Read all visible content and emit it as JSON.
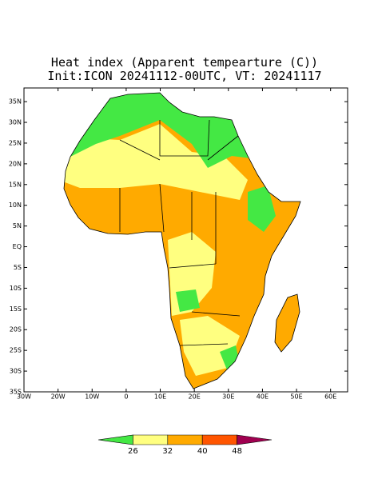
{
  "map": {
    "title": "Heat index (Apparent tempearture (C))",
    "subtitle": "Init:ICON 20241112-00UTC, VT: 20241117",
    "lat_ticks": [
      {
        "value": 35,
        "label": "35N"
      },
      {
        "value": 30,
        "label": "30N"
      },
      {
        "value": 25,
        "label": "25N"
      },
      {
        "value": 20,
        "label": "20N"
      },
      {
        "value": 15,
        "label": "15N"
      },
      {
        "value": 10,
        "label": "10N"
      },
      {
        "value": 5,
        "label": "5N"
      },
      {
        "value": 0,
        "label": "EQ"
      },
      {
        "value": -5,
        "label": "5S"
      },
      {
        "value": -10,
        "label": "10S"
      },
      {
        "value": -15,
        "label": "15S"
      },
      {
        "value": -20,
        "label": "20S"
      },
      {
        "value": -25,
        "label": "25S"
      },
      {
        "value": -30,
        "label": "30S"
      },
      {
        "value": -35,
        "label": "35S"
      }
    ],
    "lon_ticks": [
      {
        "value": -30,
        "label": "30W"
      },
      {
        "value": -20,
        "label": "20W"
      },
      {
        "value": -10,
        "label": "10W"
      },
      0,
      {
        "value": 10,
        "label": "10E"
      },
      {
        "value": 20,
        "label": "20E"
      },
      {
        "value": 30,
        "label": "30E"
      },
      {
        "value": 40,
        "label": "40E"
      },
      {
        "value": 50,
        "label": "50E"
      },
      {
        "value": 60,
        "label": "60E"
      }
    ],
    "latlim": [
      -35,
      38.3
    ],
    "lonlim": [
      -30,
      65
    ],
    "colorbar": {
      "levels": [
        26,
        32,
        40,
        48
      ],
      "colors": [
        "#44e844",
        "#ffff80",
        "#ffaa00",
        "#ff5500",
        "#a00050"
      ]
    }
  }
}
